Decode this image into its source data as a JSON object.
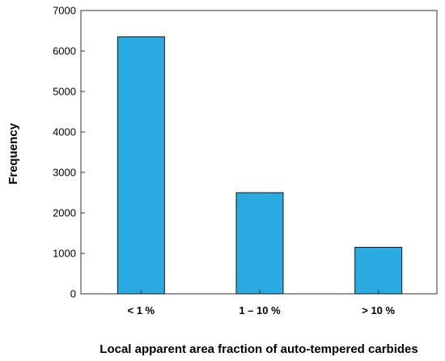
{
  "chart_data": {
    "type": "bar",
    "categories": [
      "< 1 %",
      "1 – 10 %",
      "> 10 %"
    ],
    "values": [
      6350,
      2500,
      1150
    ],
    "xlabel": "Local apparent area fraction of auto-tempered carbides",
    "ylabel": "Frequency",
    "ylim": [
      0,
      7000
    ],
    "yticks": [
      0,
      1000,
      2000,
      3000,
      4000,
      5000,
      6000,
      7000
    ],
    "grid": false,
    "legend": "none",
    "bar_color": "#29abe2",
    "bar_edge_color": "#1a1a1a"
  }
}
